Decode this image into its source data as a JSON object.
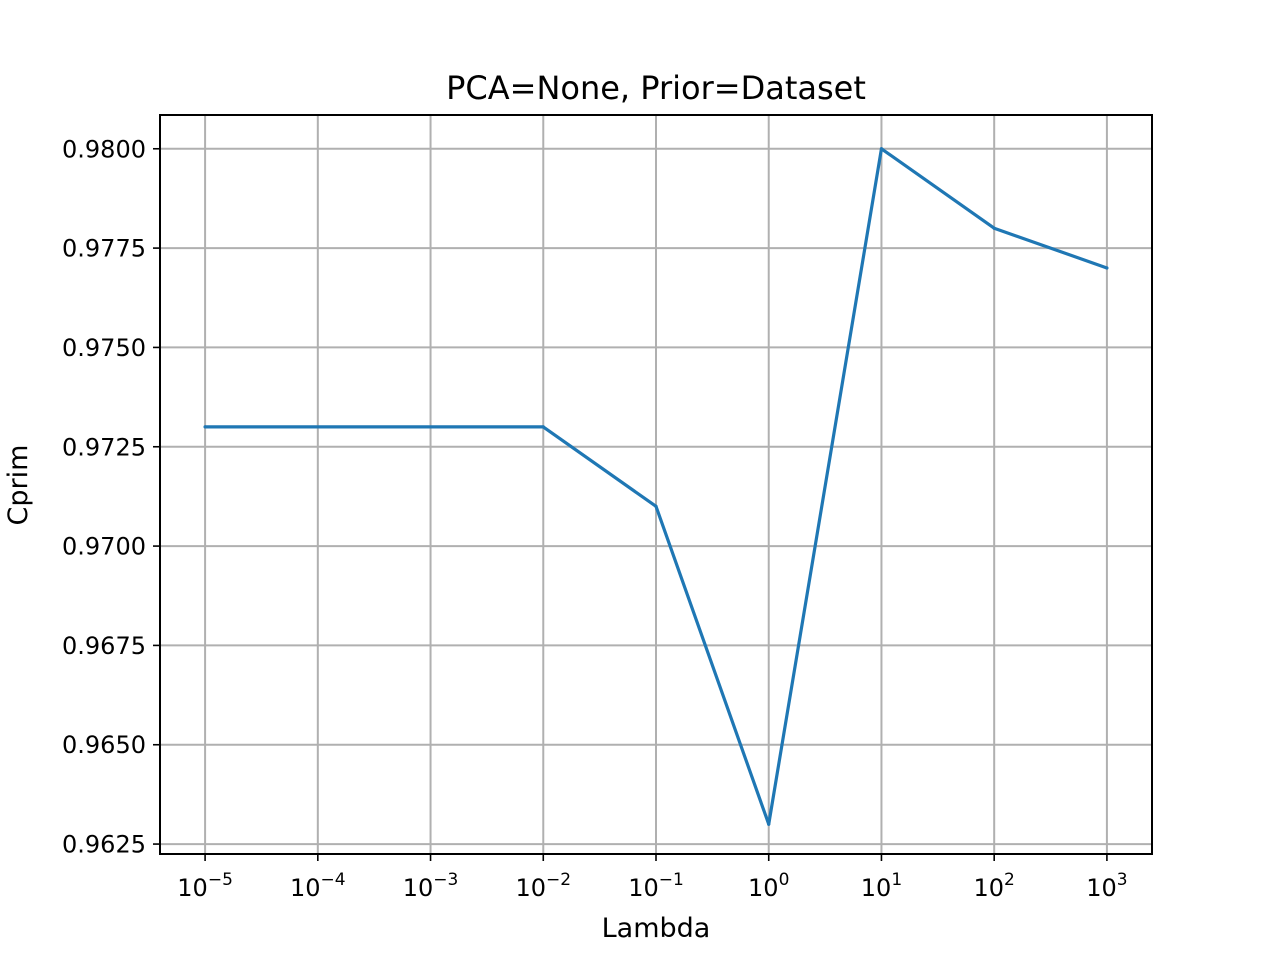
{
  "chart_data": {
    "type": "line",
    "title": "PCA=None, Prior=Dataset",
    "xlabel": "Lambda",
    "ylabel": "Cprim",
    "xscale": "log",
    "grid": true,
    "xlim_log10": [
      -5.4,
      3.4
    ],
    "ylim": [
      0.96225,
      0.98085
    ],
    "x_ticks": [
      {
        "base": "10",
        "exp": "−5",
        "value": 1e-05
      },
      {
        "base": "10",
        "exp": "−4",
        "value": 0.0001
      },
      {
        "base": "10",
        "exp": "−3",
        "value": 0.001
      },
      {
        "base": "10",
        "exp": "−2",
        "value": 0.01
      },
      {
        "base": "10",
        "exp": "−1",
        "value": 0.1
      },
      {
        "base": "10",
        "exp": "0",
        "value": 1
      },
      {
        "base": "10",
        "exp": "1",
        "value": 10
      },
      {
        "base": "10",
        "exp": "2",
        "value": 100
      },
      {
        "base": "10",
        "exp": "3",
        "value": 1000
      }
    ],
    "y_ticks": [
      "0.9625",
      "0.9650",
      "0.9675",
      "0.9700",
      "0.9725",
      "0.9750",
      "0.9775",
      "0.9800"
    ],
    "series": [
      {
        "name": "Cprim",
        "color": "#1f77b4",
        "x": [
          1e-05,
          0.01,
          0.1,
          1,
          10,
          100,
          1000
        ],
        "y": [
          0.973,
          0.973,
          0.971,
          0.963,
          0.98,
          0.978,
          0.977
        ]
      }
    ]
  }
}
